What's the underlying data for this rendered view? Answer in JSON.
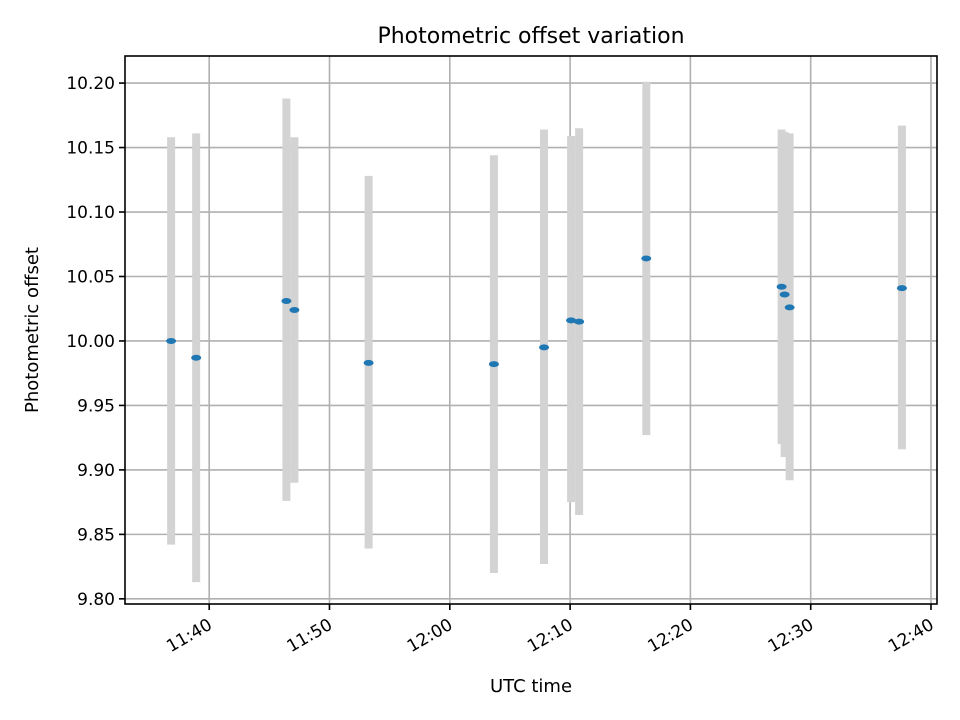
{
  "chart_data": {
    "type": "scatter",
    "title": "Photometric offset variation",
    "xlabel": "UTC time",
    "ylabel": "Photometric offset",
    "x_tick_labels": [
      "11:40",
      "11:50",
      "12:00",
      "12:10",
      "12:20",
      "12:30",
      "12:40"
    ],
    "x_tick_minutes": [
      700,
      710,
      720,
      730,
      740,
      750,
      760
    ],
    "y_ticks": [
      9.8,
      9.85,
      9.9,
      9.95,
      10.0,
      10.05,
      10.1,
      10.15,
      10.2
    ],
    "y_tick_labels": [
      "9.80",
      "9.85",
      "9.90",
      "9.95",
      "10.00",
      "10.05",
      "10.10",
      "10.15",
      "10.20"
    ],
    "xlim": [
      "11:33",
      "12:40:30"
    ],
    "ylim": [
      9.796,
      10.221
    ],
    "grid": true,
    "colors": {
      "points": "#1f77b4",
      "error_bars": "#d3d3d3"
    },
    "points": [
      {
        "x": "11:36:50",
        "y": 10.0,
        "ymin": 9.842,
        "ymax": 10.158
      },
      {
        "x": "11:38:55",
        "y": 9.987,
        "ymin": 9.813,
        "ymax": 10.161
      },
      {
        "x": "11:46:25",
        "y": 10.031,
        "ymin": 9.876,
        "ymax": 10.188
      },
      {
        "x": "11:47:05",
        "y": 10.024,
        "ymin": 9.89,
        "ymax": 10.158
      },
      {
        "x": "11:53:15",
        "y": 9.983,
        "ymin": 9.839,
        "ymax": 10.128
      },
      {
        "x": "12:03:40",
        "y": 9.982,
        "ymin": 9.82,
        "ymax": 10.144
      },
      {
        "x": "12:07:50",
        "y": 9.995,
        "ymin": 9.827,
        "ymax": 10.164
      },
      {
        "x": "12:10:05",
        "y": 10.016,
        "ymin": 9.875,
        "ymax": 10.159
      },
      {
        "x": "12:10:45",
        "y": 10.015,
        "ymin": 9.865,
        "ymax": 10.165
      },
      {
        "x": "12:16:20",
        "y": 10.064,
        "ymin": 9.927,
        "ymax": 10.201
      },
      {
        "x": "12:27:35",
        "y": 10.042,
        "ymin": 9.92,
        "ymax": 10.164
      },
      {
        "x": "12:27:50",
        "y": 10.036,
        "ymin": 9.91,
        "ymax": 10.162
      },
      {
        "x": "12:28:15",
        "y": 10.026,
        "ymin": 9.892,
        "ymax": 10.161
      },
      {
        "x": "12:37:35",
        "y": 10.041,
        "ymin": 9.916,
        "ymax": 10.167
      }
    ]
  }
}
